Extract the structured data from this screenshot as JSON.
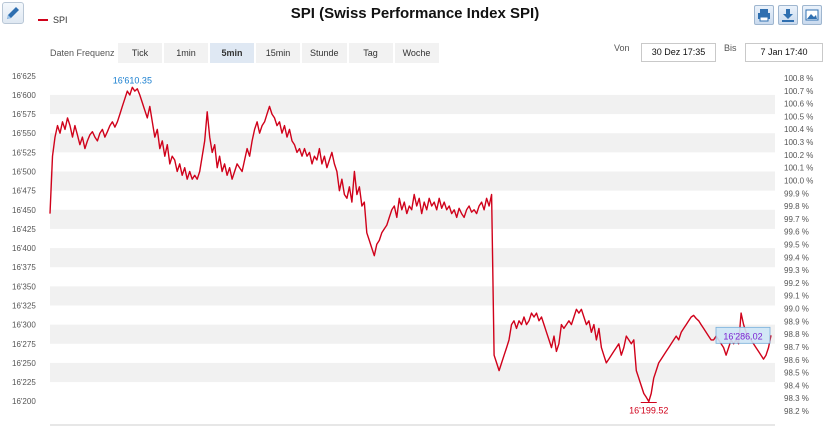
{
  "window": {
    "title": "SPI (Swiss Performance Index SPI)"
  },
  "legend": {
    "label": "SPI",
    "color": "#d0021b"
  },
  "toolbar": {
    "icons": [
      "print-icon",
      "download-icon",
      "image-icon"
    ],
    "edit_icon": "pencil-icon"
  },
  "frequency": {
    "label": "Daten Frequenz",
    "options": [
      "Tick",
      "1min",
      "5min",
      "15min",
      "Stunde",
      "Tag",
      "Woche"
    ],
    "selected": "5min"
  },
  "range": {
    "from_label": "Von",
    "from_value": "30 Dez 17:35",
    "to_label": "Bis",
    "to_value": "7 Jan 17:40"
  },
  "chart_data": {
    "type": "line",
    "title": "SPI (Swiss Performance Index SPI)",
    "series": [
      {
        "name": "SPI",
        "color": "#d0021b",
        "values": [
          16445,
          16520,
          16545,
          16560,
          16550,
          16565,
          16555,
          16570,
          16560,
          16545,
          16560,
          16548,
          16535,
          16545,
          16530,
          16540,
          16548,
          16552,
          16545,
          16540,
          16550,
          16555,
          16545,
          16552,
          16560,
          16565,
          16558,
          16565,
          16575,
          16585,
          16595,
          16605,
          16600,
          16610,
          16605,
          16608,
          16600,
          16590,
          16580,
          16570,
          16585,
          16565,
          16545,
          16555,
          16530,
          16540,
          16520,
          16535,
          16510,
          16520,
          16515,
          16500,
          16510,
          16495,
          16505,
          16490,
          16500,
          16490,
          16495,
          16490,
          16500,
          16520,
          16540,
          16578,
          16545,
          16525,
          16535,
          16505,
          16520,
          16500,
          16510,
          16495,
          16505,
          16490,
          16500,
          16510,
          16505,
          16500,
          16515,
          16530,
          16520,
          16540,
          16555,
          16565,
          16550,
          16560,
          16565,
          16575,
          16585,
          16575,
          16570,
          16560,
          16565,
          16550,
          16560,
          16545,
          16555,
          16540,
          16535,
          16525,
          16530,
          16520,
          16530,
          16520,
          16525,
          16510,
          16520,
          16515,
          16530,
          16510,
          16520,
          16505,
          16515,
          16525,
          16510,
          16500,
          16475,
          16490,
          16470,
          16465,
          16480,
          16460,
          16500,
          16470,
          16480,
          16455,
          16460,
          16420,
          16410,
          16400,
          16390,
          16405,
          16410,
          16420,
          16425,
          16430,
          16440,
          16450,
          16455,
          16440,
          16465,
          16450,
          16460,
          16445,
          16455,
          16450,
          16470,
          16455,
          16465,
          16445,
          16460,
          16450,
          16465,
          16455,
          16460,
          16450,
          16465,
          16452,
          16460,
          16450,
          16455,
          16445,
          16450,
          16440,
          16452,
          16445,
          16440,
          16450,
          16455,
          16447,
          16450,
          16445,
          16455,
          16460,
          16450,
          16465,
          16455,
          16470,
          16260,
          16250,
          16240,
          16250,
          16260,
          16270,
          16280,
          16300,
          16305,
          16295,
          16305,
          16300,
          16310,
          16300,
          16305,
          16315,
          16310,
          16315,
          16305,
          16310,
          16300,
          16290,
          16280,
          16270,
          16285,
          16265,
          16275,
          16300,
          16295,
          16300,
          16305,
          16300,
          16310,
          16320,
          16315,
          16320,
          16310,
          16300,
          16305,
          16290,
          16300,
          16280,
          16295,
          16270,
          16260,
          16250,
          16255,
          16260,
          16265,
          16270,
          16275,
          16260,
          16270,
          16285,
          16280,
          16275,
          16280,
          16240,
          16230,
          16220,
          16210,
          16205,
          16199.52,
          16210,
          16230,
          16240,
          16250,
          16255,
          16260,
          16265,
          16270,
          16275,
          16280,
          16285,
          16280,
          16290,
          16295,
          16300,
          16305,
          16310,
          16312,
          16308,
          16305,
          16300,
          16295,
          16290,
          16285,
          16280,
          16280,
          16285,
          16280,
          16275,
          16270,
          16260,
          16270,
          16280,
          16275,
          16280,
          16275,
          16315,
          16300,
          16290,
          16285,
          16280,
          16275,
          16270,
          16265,
          16260,
          16255,
          16260,
          16270,
          16286.02
        ]
      }
    ],
    "x_range_label": {
      "from": "30 Dez 17:35",
      "to": "7 Jan 17:40"
    },
    "y_left": {
      "ylim": [
        16195,
        16630
      ],
      "ticks": [
        16625,
        16600,
        16575,
        16550,
        16525,
        16500,
        16475,
        16450,
        16425,
        16400,
        16375,
        16350,
        16325,
        16300,
        16275,
        16250,
        16225,
        16200
      ],
      "tick_labels": [
        "16'625",
        "16'600",
        "16'575",
        "16'550",
        "16'525",
        "16'500",
        "16'475",
        "16'450",
        "16'425",
        "16'400",
        "16'375",
        "16'350",
        "16'325",
        "16'300",
        "16'275",
        "16'250",
        "16'225",
        "16'200"
      ]
    },
    "y_right": {
      "ticks": [
        100.8,
        100.7,
        100.6,
        100.5,
        100.4,
        100.3,
        100.2,
        100.1,
        100.0,
        99.9,
        99.8,
        99.7,
        99.6,
        99.5,
        99.4,
        99.3,
        99.2,
        99.1,
        99.0,
        98.9,
        98.8,
        98.7,
        98.6,
        98.5,
        98.4,
        98.3,
        98.2
      ],
      "tick_labels": [
        "100.8 %",
        "100.7 %",
        "100.6 %",
        "100.5 %",
        "100.4 %",
        "100.3 %",
        "100.2 %",
        "100.1 %",
        "100.0 %",
        "99.9 %",
        "99.8 %",
        "99.7 %",
        "99.6 %",
        "99.5 %",
        "99.4 %",
        "99.3 %",
        "99.2 %",
        "99.1 %",
        "99.0 %",
        "98.9 %",
        "98.8 %",
        "98.7 %",
        "98.6 %",
        "98.5 %",
        "98.4 %",
        "98.3 %",
        "98.2 %"
      ]
    },
    "grid": "alternating-bands",
    "annotations": {
      "high": {
        "label": "16'610.35",
        "value": 16610.35,
        "color": "#1a7fd0"
      },
      "low": {
        "label": "16'199.52",
        "value": 16199.52,
        "color": "#d0021b"
      },
      "last": {
        "label": "16'286.02",
        "value": 16286.02,
        "color": "#7a1fd0",
        "bg": "#cfe6f7"
      }
    }
  }
}
